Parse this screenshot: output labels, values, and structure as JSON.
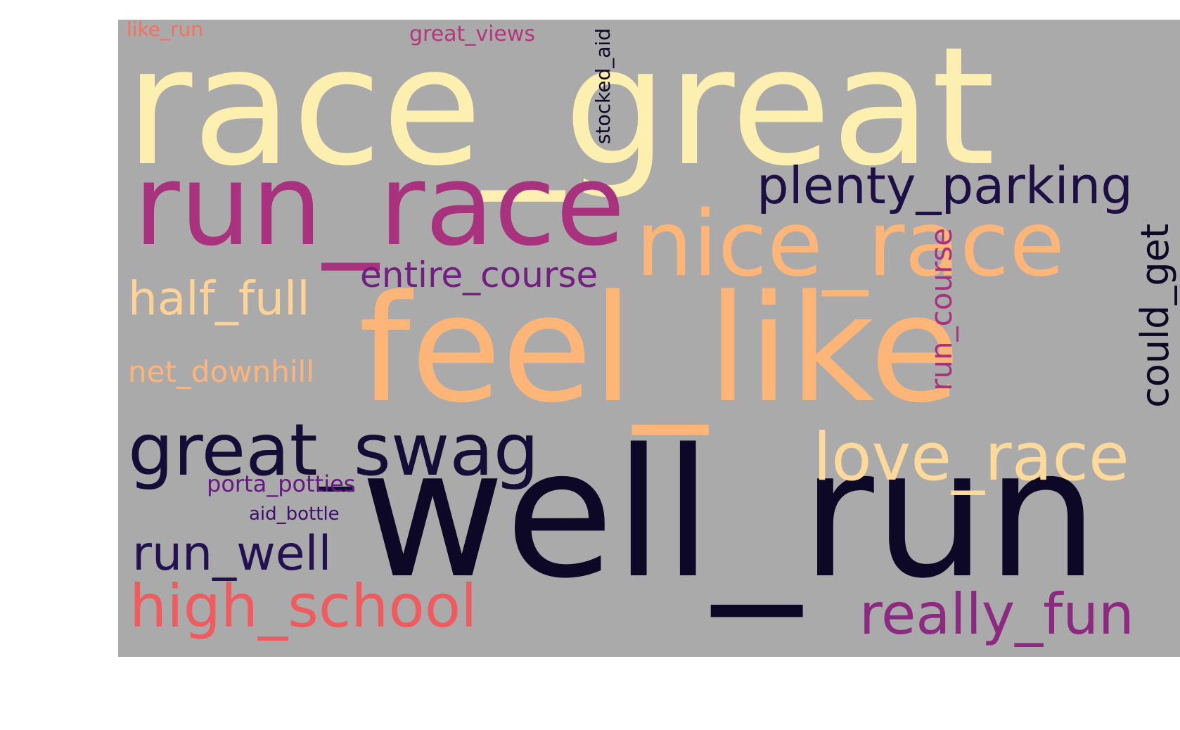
{
  "colors": {
    "background": "#aaaaaa",
    "page": "#ffffff"
  },
  "words": [
    {
      "key": "race_great",
      "text": "race_great",
      "color": "#fcefb0",
      "orientation": "horizontal"
    },
    {
      "key": "well_run",
      "text": "well_run",
      "color": "#0c0826",
      "orientation": "horizontal"
    },
    {
      "key": "feel_like",
      "text": "feel_like",
      "color": "#feb578",
      "orientation": "horizontal"
    },
    {
      "key": "run_race",
      "text": "run_race",
      "color": "#a8327d",
      "orientation": "horizontal"
    },
    {
      "key": "nice_race",
      "text": "nice_race",
      "color": "#feb578",
      "orientation": "horizontal"
    },
    {
      "key": "great_swag",
      "text": "great_swag",
      "color": "#140e36",
      "orientation": "horizontal"
    },
    {
      "key": "love_race",
      "text": "love_race",
      "color": "#fdd99b",
      "orientation": "horizontal"
    },
    {
      "key": "plenty_parking",
      "text": "plenty_parking",
      "color": "#1c1044",
      "orientation": "horizontal"
    },
    {
      "key": "high_school",
      "text": "high_school",
      "color": "#ef5b5e",
      "orientation": "horizontal"
    },
    {
      "key": "really_fun",
      "text": "really_fun",
      "color": "#8c2981",
      "orientation": "horizontal"
    },
    {
      "key": "run_well",
      "text": "run_well",
      "color": "#231151",
      "orientation": "horizontal"
    },
    {
      "key": "half_full",
      "text": "half_full",
      "color": "#fed395",
      "orientation": "horizontal"
    },
    {
      "key": "entire_course",
      "text": "entire_course",
      "color": "#721f81",
      "orientation": "horizontal"
    },
    {
      "key": "could_get",
      "text": "could_get",
      "color": "#0c0826",
      "orientation": "vertical"
    },
    {
      "key": "run_course",
      "text": "run_course",
      "color": "#a8327d",
      "orientation": "vertical"
    },
    {
      "key": "net_downhill",
      "text": "net_downhill",
      "color": "#fdb47c",
      "orientation": "horizontal"
    },
    {
      "key": "stocked_aid",
      "text": "stocked_aid",
      "color": "#0c0826",
      "orientation": "vertical"
    },
    {
      "key": "great_views",
      "text": "great_views",
      "color": "#b5367a",
      "orientation": "horizontal"
    },
    {
      "key": "porta_potties",
      "text": "porta_potties",
      "color": "#641a80",
      "orientation": "horizontal"
    },
    {
      "key": "aid_bottle",
      "text": "aid_bottle",
      "color": "#3b0f70",
      "orientation": "horizontal"
    },
    {
      "key": "like_run",
      "text": "like_run",
      "color": "#f7705c",
      "orientation": "horizontal"
    }
  ]
}
